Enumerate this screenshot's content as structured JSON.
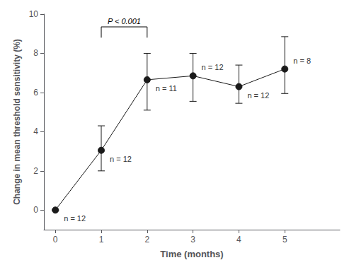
{
  "chart_data": {
    "type": "line",
    "xlabel": "Time (months)",
    "ylabel": "Change in mean threshold sensitivity (%)",
    "x": [
      0,
      1,
      2,
      3,
      4,
      5
    ],
    "values": [
      0.0,
      3.05,
      6.65,
      6.85,
      6.3,
      7.2
    ],
    "yerr_upper": [
      0.0,
      1.25,
      1.35,
      1.15,
      1.1,
      1.65
    ],
    "yerr_lower": [
      0.0,
      1.05,
      1.55,
      1.3,
      0.85,
      1.25
    ],
    "point_labels": [
      "n = 12",
      "n = 12",
      "n = 11",
      "n = 12",
      "n = 12",
      "n = 8"
    ],
    "xlim": [
      -0.25,
      6.2
    ],
    "ylim": [
      -1.0,
      10.0
    ],
    "xticks": [
      0,
      1,
      2,
      3,
      4,
      5
    ],
    "yticks": [
      0,
      2,
      4,
      6,
      8,
      10
    ],
    "grid": false,
    "color": "#1a1a1a",
    "marker": "circle",
    "bracket": {
      "x1": 1.0,
      "x2": 2.0,
      "y_top": 9.35,
      "arm_length": 0.55,
      "text": "P < 0.001"
    }
  }
}
